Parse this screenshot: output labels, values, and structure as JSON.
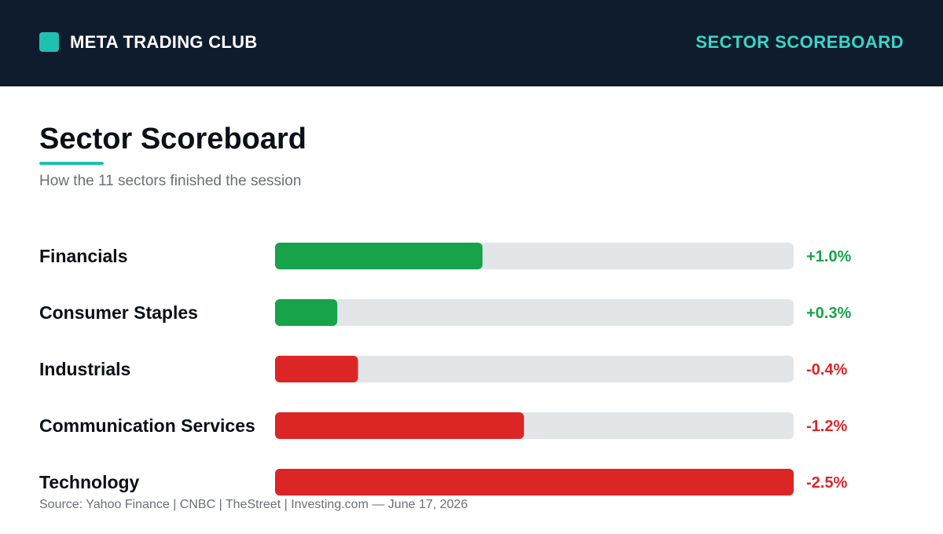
{
  "header": {
    "brand_name": "META TRADING CLUB",
    "section_label": "SECTOR SCOREBOARD"
  },
  "title": "Sector Scoreboard",
  "subtitle": "How the 11 sectors finished the session",
  "source": "Source: Yahoo Finance | CNBC | TheStreet | Investing.com — June 17, 2026",
  "colors": {
    "header_bg": "#0f1c2e",
    "accent": "#20c0b0",
    "positive": "#16a34a",
    "negative": "#dc2626",
    "track": "#e2e6e9"
  },
  "chart_data": {
    "type": "bar",
    "orientation": "horizontal",
    "categories": [
      "Financials",
      "Consumer Staples",
      "Industrials",
      "Communication Services",
      "Technology"
    ],
    "values": [
      1.0,
      0.3,
      -0.4,
      -1.2,
      -2.5
    ],
    "value_labels": [
      "+1.0%",
      "+0.3%",
      "-0.4%",
      "-1.2%",
      "-2.5%"
    ],
    "xlim": [
      0,
      2.5
    ],
    "unit": "%"
  }
}
